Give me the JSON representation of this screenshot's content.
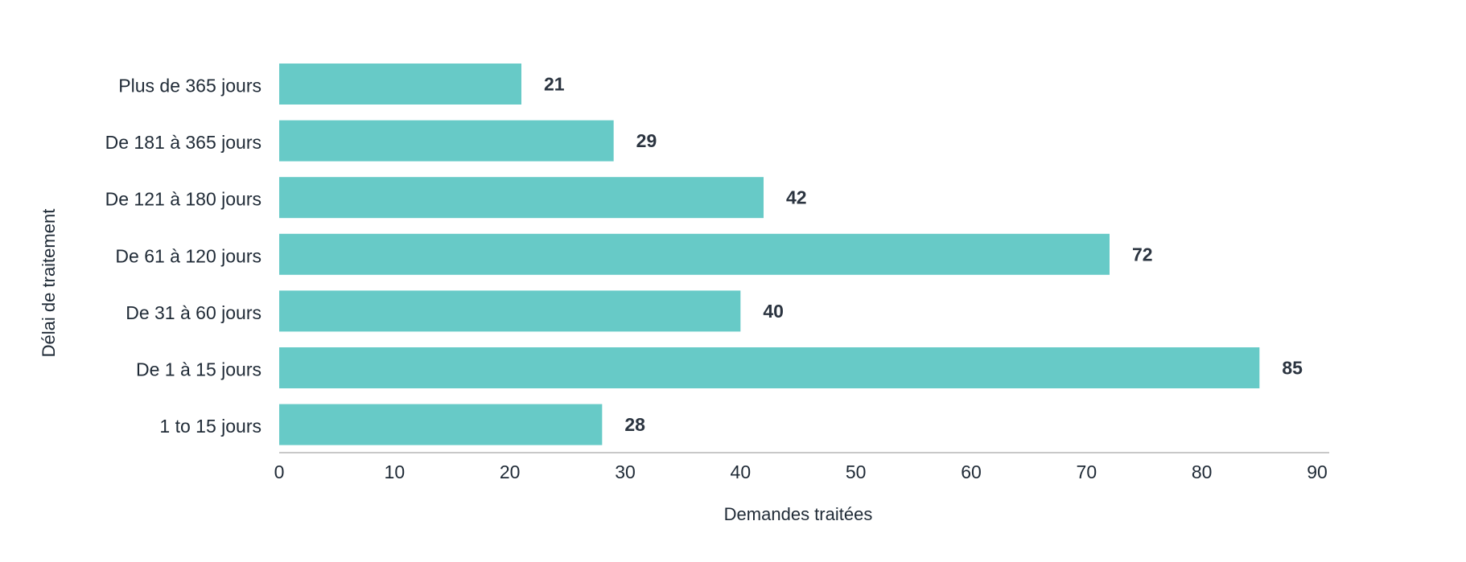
{
  "chart_data": {
    "type": "bar",
    "orientation": "horizontal",
    "categories": [
      "Plus de 365 jours",
      "De 181 à 365 jours",
      "De 121 à 180 jours",
      "De 61 à 120 jours",
      "De 31 à 60 jours",
      "De 1 à 15 jours",
      "1 to 15 jours"
    ],
    "values": [
      21,
      29,
      42,
      72,
      40,
      85,
      28
    ],
    "value_labels": [
      "21",
      "29",
      "42",
      "72",
      "40",
      "85",
      "28"
    ],
    "xlabel": "Demandes traitées",
    "ylabel": "Délai de traitement",
    "xlim": [
      0,
      90
    ],
    "xticks": [
      0,
      10,
      20,
      30,
      40,
      50,
      60,
      70,
      80,
      90
    ],
    "xtick_labels": [
      "0",
      "10",
      "20",
      "30",
      "40",
      "50",
      "60",
      "70",
      "80",
      "90"
    ],
    "bar_color": "#67cac7",
    "grid": false,
    "legend": "none"
  }
}
